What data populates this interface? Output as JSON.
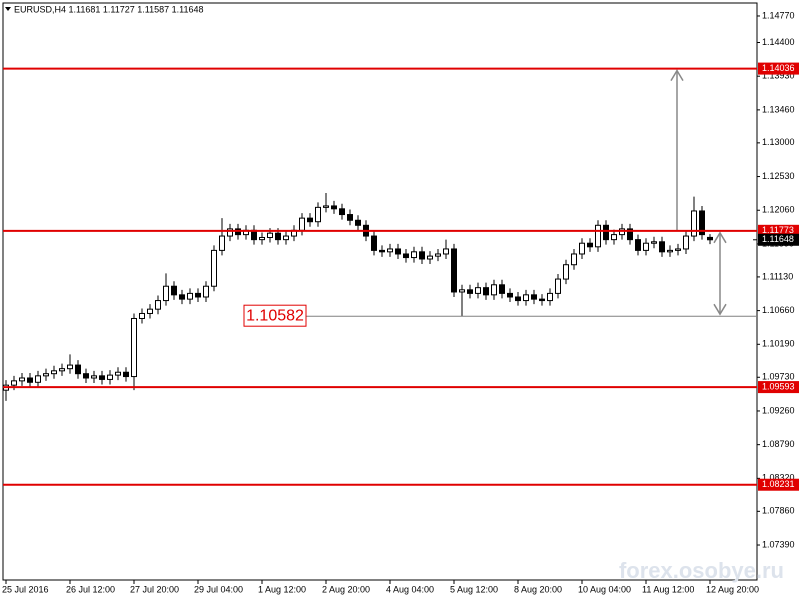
{
  "chart_data": {
    "type": "candlestick",
    "title": "EURUSD,H4  1.11681 1.11727 1.11587 1.11648",
    "watermark": "forex.osobye.ru",
    "categories": [
      "25 Jul 2016",
      null,
      null,
      null,
      null,
      null,
      null,
      null,
      "26 Jul 12:00",
      null,
      null,
      null,
      null,
      null,
      null,
      null,
      "27 Jul 20:00",
      null,
      null,
      null,
      null,
      null,
      null,
      null,
      "29 Jul 04:00",
      null,
      null,
      null,
      null,
      null,
      null,
      null,
      "1 Aug 12:00",
      null,
      null,
      null,
      null,
      null,
      null,
      null,
      "2 Aug 20:00",
      null,
      null,
      null,
      null,
      null,
      null,
      null,
      "4 Aug 04:00",
      null,
      null,
      null,
      null,
      null,
      null,
      null,
      "5 Aug 12:00",
      null,
      null,
      null,
      null,
      null,
      null,
      null,
      "8 Aug 20:00",
      null,
      null,
      null,
      null,
      null,
      null,
      null,
      "10 Aug 04:00",
      null,
      null,
      null,
      null,
      null,
      null,
      null,
      "11 Aug 12:00",
      null,
      null,
      null,
      null,
      null,
      null,
      null,
      "12 Aug 20:00"
    ],
    "open": [
      1.0955,
      1.0962,
      1.0968,
      1.0972,
      1.0966,
      1.0975,
      1.0978,
      1.0982,
      1.0985,
      1.099,
      1.0978,
      1.0972,
      1.0975,
      1.097,
      1.0976,
      1.098,
      1.0974,
      1.1055,
      1.1062,
      1.1068,
      1.108,
      1.11,
      1.1088,
      1.1082,
      1.109,
      1.1085,
      1.11,
      1.115,
      1.117,
      1.118,
      1.1172,
      1.1178,
      1.1165,
      1.1168,
      1.1174,
      1.1165,
      1.117,
      1.1178,
      1.1195,
      1.119,
      1.121,
      1.1212,
      1.1208,
      1.12,
      1.1192,
      1.1185,
      1.117,
      1.115,
      1.1148,
      1.1152,
      1.1145,
      1.114,
      1.1148,
      1.1138,
      1.1142,
      1.1145,
      1.1152,
      1.1092,
      1.1095,
      1.109,
      1.1098,
      1.1088,
      1.1102,
      1.109,
      1.1085,
      1.108,
      1.1088,
      1.1082,
      1.108,
      1.109,
      1.111,
      1.113,
      1.1145,
      1.116,
      1.1155,
      1.1185,
      1.1165,
      1.1172,
      1.118,
      1.1165,
      1.115,
      1.116,
      1.1162,
      1.1148,
      1.115,
      1.1152,
      1.117,
      1.1205,
      1.11681
    ],
    "high": [
      1.0969,
      1.0975,
      1.0979,
      1.0979,
      1.0982,
      1.0985,
      1.0989,
      1.0992,
      1.1005,
      1.0997,
      1.0985,
      1.0982,
      1.0982,
      1.0983,
      1.0987,
      1.0987,
      1.1062,
      1.1069,
      1.1075,
      1.1087,
      1.1118,
      1.1107,
      1.1095,
      1.1097,
      1.1097,
      1.1107,
      1.1157,
      1.1195,
      1.1187,
      1.1187,
      1.1185,
      1.1185,
      1.1175,
      1.1181,
      1.1181,
      1.1177,
      1.1185,
      1.1202,
      1.1202,
      1.1217,
      1.123,
      1.1219,
      1.1215,
      1.1207,
      1.1199,
      1.1192,
      1.1177,
      1.1157,
      1.1159,
      1.1159,
      1.1152,
      1.1155,
      1.1155,
      1.1149,
      1.1152,
      1.1165,
      1.1159,
      1.1102,
      1.1102,
      1.1105,
      1.1105,
      1.1109,
      1.1109,
      1.1097,
      1.1092,
      1.1095,
      1.1095,
      1.1089,
      1.1097,
      1.1117,
      1.1137,
      1.1152,
      1.1167,
      1.1167,
      1.1192,
      1.1192,
      1.1179,
      1.1187,
      1.1187,
      1.1172,
      1.1167,
      1.1169,
      1.1169,
      1.1157,
      1.1159,
      1.1177,
      1.1225,
      1.1212,
      1.11727
    ],
    "low": [
      1.094,
      1.0955,
      1.0961,
      1.0959,
      1.0959,
      1.0968,
      1.0971,
      1.0975,
      1.0978,
      1.0971,
      1.0965,
      1.0965,
      1.0963,
      1.0963,
      1.0969,
      1.0967,
      1.0955,
      1.1048,
      1.1055,
      1.1061,
      1.1073,
      1.1081,
      1.1075,
      1.1075,
      1.1078,
      1.1078,
      1.1093,
      1.1143,
      1.1163,
      1.1165,
      1.1165,
      1.1158,
      1.1158,
      1.1161,
      1.1158,
      1.1158,
      1.1163,
      1.1171,
      1.1183,
      1.1183,
      1.1203,
      1.1201,
      1.1193,
      1.1185,
      1.1178,
      1.1163,
      1.1143,
      1.1141,
      1.1141,
      1.1138,
      1.1133,
      1.1133,
      1.1131,
      1.1131,
      1.1135,
      1.1138,
      1.1085,
      1.1058,
      1.1083,
      1.1083,
      1.1081,
      1.1081,
      1.1083,
      1.1078,
      1.1073,
      1.1073,
      1.1075,
      1.1073,
      1.1073,
      1.1083,
      1.1103,
      1.1123,
      1.1138,
      1.1148,
      1.1148,
      1.1158,
      1.1158,
      1.1165,
      1.1158,
      1.1143,
      1.1143,
      1.1153,
      1.1141,
      1.1141,
      1.1143,
      1.1145,
      1.1163,
      1.1165,
      1.11587
    ],
    "close": [
      1.0962,
      1.0968,
      1.0972,
      1.0966,
      1.0975,
      1.0978,
      1.0982,
      1.0985,
      1.099,
      1.0978,
      1.0972,
      1.0975,
      1.097,
      1.0976,
      1.098,
      1.0974,
      1.1055,
      1.1062,
      1.1068,
      1.108,
      1.11,
      1.1088,
      1.1082,
      1.109,
      1.1085,
      1.11,
      1.115,
      1.117,
      1.118,
      1.1172,
      1.1178,
      1.1165,
      1.1168,
      1.1174,
      1.1165,
      1.117,
      1.1178,
      1.1195,
      1.119,
      1.121,
      1.1212,
      1.1208,
      1.12,
      1.1192,
      1.1185,
      1.117,
      1.115,
      1.1148,
      1.1152,
      1.1145,
      1.114,
      1.1148,
      1.1138,
      1.1142,
      1.1145,
      1.1152,
      1.1092,
      1.1095,
      1.109,
      1.1098,
      1.1088,
      1.1102,
      1.109,
      1.1085,
      1.108,
      1.1088,
      1.1082,
      1.108,
      1.109,
      1.111,
      1.113,
      1.1145,
      1.116,
      1.1155,
      1.1185,
      1.1165,
      1.1172,
      1.118,
      1.1165,
      1.115,
      1.116,
      1.1162,
      1.1148,
      1.115,
      1.1152,
      1.117,
      1.1205,
      1.1172,
      1.11648
    ],
    "bull_color": "#ffffff",
    "bear_color": "#000000",
    "ylim": [
      1.06902,
      1.14951
    ],
    "yticks": [
      {
        "value": 1.1477,
        "label": "1.14770"
      },
      {
        "value": 1.144,
        "label": "1.14400"
      },
      {
        "value": 1.1393,
        "label": "1.13930"
      },
      {
        "value": 1.1346,
        "label": "1.13460"
      },
      {
        "value": 1.13,
        "label": "1.13000"
      },
      {
        "value": 1.1253,
        "label": "1.12530"
      },
      {
        "value": 1.1206,
        "label": "1.12060"
      },
      {
        "value": 1.1159,
        "label": "1.11590"
      },
      {
        "value": 1.1113,
        "label": "1.11130"
      },
      {
        "value": 1.1066,
        "label": "1.10660"
      },
      {
        "value": 1.1019,
        "label": "1.10190"
      },
      {
        "value": 1.0973,
        "label": "1.09730"
      },
      {
        "value": 1.0926,
        "label": "1.09260"
      },
      {
        "value": 1.0879,
        "label": "1.08790"
      },
      {
        "value": 1.0832,
        "label": "1.08320"
      },
      {
        "value": 1.0786,
        "label": "1.07860"
      },
      {
        "value": 1.0739,
        "label": "1.07390"
      }
    ],
    "levels": {
      "values": [
        1.14036,
        1.11773,
        1.09593,
        1.08231
      ],
      "color": "#e00000"
    },
    "current_price": 1.11648,
    "annotation": {
      "value": 1.10582,
      "color": "#e00000",
      "line_color": "#808080"
    }
  }
}
